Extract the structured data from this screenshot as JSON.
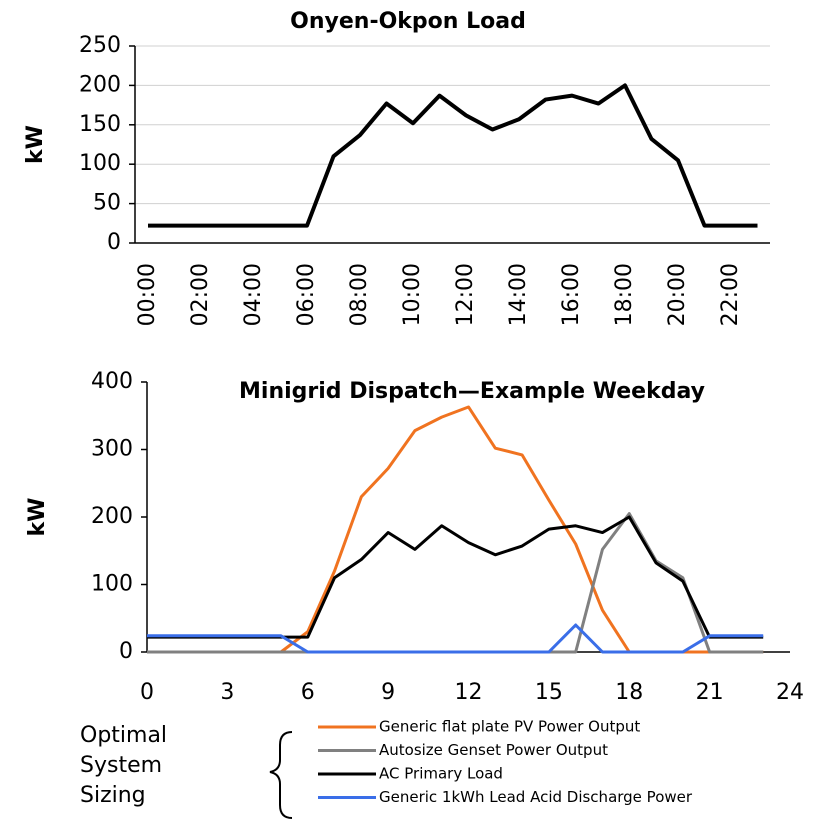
{
  "chart_data": [
    {
      "type": "line",
      "title": "Onyen-Okpon Load",
      "y_label": "kW",
      "categories": [
        "00:00",
        null,
        "02:00",
        null,
        "04:00",
        null,
        "06:00",
        null,
        "08:00",
        null,
        "10:00",
        null,
        "12:00",
        null,
        "14:00",
        null,
        "16:00",
        null,
        "18:00",
        null,
        "20:00",
        null,
        "22:00",
        null
      ],
      "series": [
        {
          "name": "Load",
          "color": "#000000",
          "values": [
            22,
            22,
            22,
            22,
            22,
            22,
            22,
            110,
            137,
            177,
            152,
            187,
            162,
            144,
            157,
            182,
            187,
            177,
            200,
            132,
            105,
            22,
            22,
            22
          ]
        }
      ],
      "ylim": [
        0,
        250
      ],
      "yticks": [
        0,
        50,
        100,
        150,
        200,
        250
      ],
      "grid": true
    },
    {
      "type": "line",
      "title": "Minigrid Dispatch—Example Weekday",
      "y_label": "kW",
      "x": [
        0,
        1,
        2,
        3,
        4,
        5,
        6,
        7,
        8,
        9,
        10,
        11,
        12,
        13,
        14,
        15,
        16,
        17,
        18,
        19,
        20,
        21,
        22,
        23
      ],
      "series": [
        {
          "name": "Generic flat plate PV Power Output",
          "color": "#f07320",
          "values": [
            0,
            0,
            0,
            0,
            0,
            0,
            30,
            120,
            230,
            272,
            328,
            348,
            363,
            302,
            292,
            225,
            160,
            62,
            0,
            0,
            0,
            0,
            0,
            0
          ]
        },
        {
          "name": "Autosize Genset Power Output",
          "color": "#808080",
          "values": [
            0,
            0,
            0,
            0,
            0,
            0,
            0,
            0,
            0,
            0,
            0,
            0,
            0,
            0,
            0,
            0,
            0,
            152,
            205,
            135,
            110,
            0,
            0,
            0
          ]
        },
        {
          "name": "AC Primary Load",
          "color": "#000000",
          "values": [
            22,
            22,
            22,
            22,
            22,
            22,
            22,
            110,
            137,
            177,
            152,
            187,
            162,
            144,
            157,
            182,
            187,
            177,
            200,
            132,
            105,
            22,
            22,
            22
          ]
        },
        {
          "name": "Generic 1kWh Lead Acid Discharge Power",
          "color": "#3a6ee8",
          "values": [
            24,
            24,
            24,
            24,
            24,
            24,
            0,
            0,
            0,
            0,
            0,
            0,
            0,
            0,
            0,
            0,
            40,
            0,
            0,
            0,
            0,
            24,
            24,
            24
          ]
        }
      ],
      "xlim": [
        0,
        24
      ],
      "xticks": [
        0,
        3,
        6,
        9,
        12,
        15,
        18,
        21,
        24
      ],
      "ylim": [
        0,
        400
      ],
      "yticks": [
        0,
        100,
        200,
        300,
        400
      ],
      "grid": false,
      "legend_note": [
        "Optimal",
        "System",
        "Sizing"
      ]
    }
  ]
}
